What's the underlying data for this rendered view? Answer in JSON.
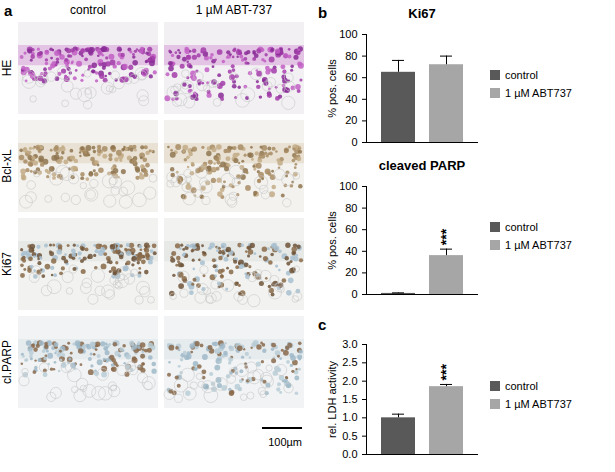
{
  "panel_a": {
    "label": "a",
    "columns": [
      "control",
      "1 µM ABT-737"
    ],
    "rows": [
      "HE",
      "Bcl-xL",
      "Ki67",
      "cl.PARP"
    ],
    "scale_bar": "100µm"
  },
  "chart_data": [
    {
      "type": "bar",
      "panel_label": "b",
      "title": "Ki67",
      "y_label": "% pos. cells",
      "ylim": [
        0,
        100
      ],
      "yticks": [
        0,
        20,
        40,
        60,
        80,
        100
      ],
      "legend": "right",
      "tick_labels": "y",
      "series": [
        {
          "name": "control",
          "color": "#595959",
          "values": [
            65
          ],
          "errors": [
            11
          ]
        },
        {
          "name": "1 µM ABT737",
          "color": "#a6a6a6",
          "values": [
            72
          ],
          "errors": [
            8
          ]
        }
      ]
    },
    {
      "type": "bar",
      "title": "cleaved PARP",
      "y_label": "% pos. cells",
      "ylim": [
        0,
        100
      ],
      "yticks": [
        0,
        20,
        40,
        60,
        80,
        100
      ],
      "legend": "right",
      "tick_labels": "y",
      "series": [
        {
          "name": "control",
          "color": "#595959",
          "values": [
            1
          ],
          "errors": [
            0.5
          ]
        },
        {
          "name": "1 µM ABT737",
          "color": "#a6a6a6",
          "values": [
            36
          ],
          "errors": [
            6
          ],
          "annotation": "***"
        }
      ]
    },
    {
      "type": "bar",
      "panel_label": "c",
      "y_label": "rel. LDH activity",
      "ylim": [
        0,
        3
      ],
      "yticks": [
        {
          "value": 0,
          "label": "0.0"
        },
        {
          "value": 0.5,
          "label": "0.5"
        },
        {
          "value": 1,
          "label": "1.0"
        },
        {
          "value": 1.5,
          "label": "1.5"
        },
        {
          "value": 2,
          "label": "2.0"
        },
        {
          "value": 2.5,
          "label": "2.5"
        },
        {
          "value": 3,
          "label": "3.0"
        }
      ],
      "legend": "right",
      "tick_labels": "y",
      "series": [
        {
          "name": "control",
          "color": "#595959",
          "values": [
            1.0
          ],
          "errors": [
            0.1
          ]
        },
        {
          "name": "1 µM ABT737",
          "color": "#a6a6a6",
          "values": [
            1.85
          ],
          "errors": [
            0.06
          ],
          "annotation": "***"
        }
      ]
    }
  ]
}
